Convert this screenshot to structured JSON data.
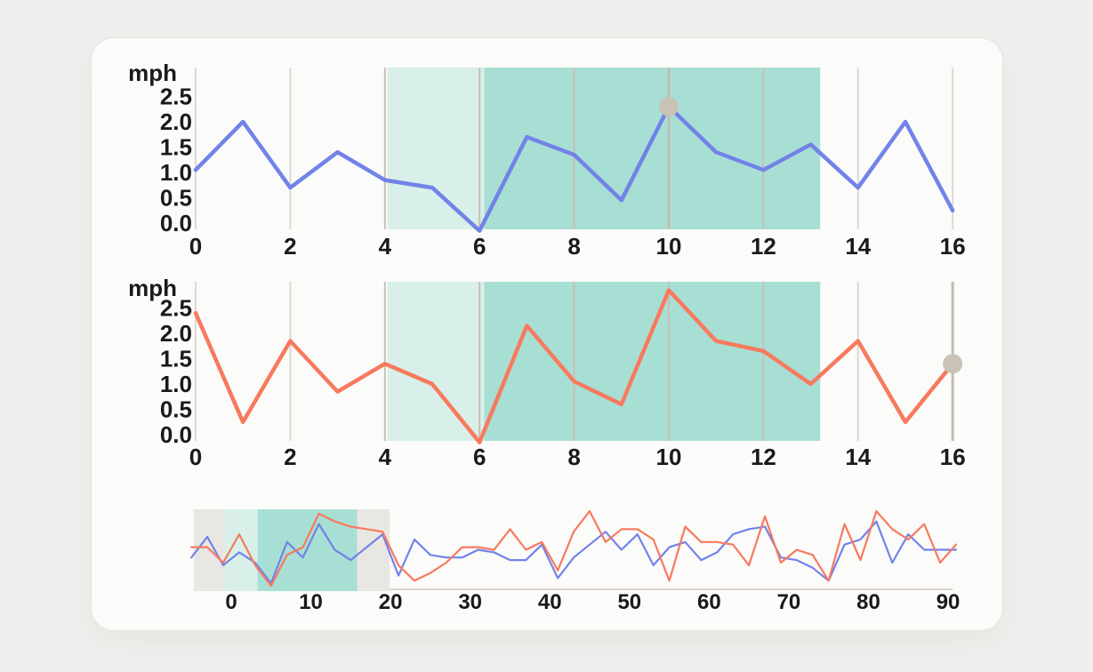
{
  "colors": {
    "blue": "#7283e8",
    "orange": "#f77a5e",
    "teal_light": "#d8f0e9",
    "teal_dark": "#a8dfd4",
    "grid": "#dcd9d2",
    "grid_highlight": "#c9bfb2",
    "cursor": "#c3bcae",
    "marker": "#cac3b5",
    "band_gray": "#e9e7e3",
    "axis_line": "#ddd5c7",
    "text": "#1a1a1c",
    "card_background": "#fbfbfa",
    "page_background": "#f0efed"
  },
  "chart_data": [
    {
      "type": "line",
      "id": "speed-detail-top",
      "ylabel": "mph",
      "x": [
        0,
        1,
        2,
        3,
        4,
        5,
        6,
        7,
        8,
        9,
        10,
        11,
        12,
        13,
        14,
        15,
        16
      ],
      "series": [
        {
          "name": "blue",
          "color": "#7283e8",
          "values": [
            1.05,
            2.0,
            0.7,
            1.4,
            0.85,
            0.7,
            -0.15,
            1.7,
            1.35,
            0.45,
            2.3,
            1.4,
            1.05,
            1.55,
            0.7,
            2.0,
            0.25
          ]
        }
      ],
      "xticks": [
        0,
        2,
        4,
        6,
        8,
        10,
        12,
        14,
        16
      ],
      "yticks": [
        2.5,
        2.0,
        1.5,
        1.0,
        0.5,
        0.0
      ],
      "xlim": [
        -0.4,
        16.4
      ],
      "ylim": [
        -0.2,
        3.1
      ],
      "grid": "vertical",
      "legend": "none",
      "regions": [
        {
          "from": 4.05,
          "to": 6.1,
          "color_key": "teal_light"
        },
        {
          "from": 6.1,
          "to": 13.2,
          "color_key": "teal_dark"
        }
      ],
      "marker": {
        "x": 10,
        "y": 2.3
      },
      "cursor_x": 10
    },
    {
      "type": "line",
      "id": "speed-detail-bottom",
      "ylabel": "mph",
      "x": [
        0,
        1,
        2,
        3,
        4,
        5,
        6,
        7,
        8,
        9,
        10,
        11,
        12,
        13,
        14,
        15,
        16
      ],
      "series": [
        {
          "name": "orange",
          "color": "#f77a5e",
          "values": [
            2.4,
            0.25,
            1.85,
            0.85,
            1.4,
            1.0,
            -0.15,
            2.15,
            1.05,
            0.6,
            2.85,
            1.85,
            1.65,
            1.0,
            1.85,
            0.25,
            1.4
          ]
        }
      ],
      "xticks": [
        0,
        2,
        4,
        6,
        8,
        10,
        12,
        14,
        16
      ],
      "yticks": [
        2.5,
        2.0,
        1.5,
        1.0,
        0.5,
        0.0
      ],
      "xlim": [
        -0.4,
        16.4
      ],
      "ylim": [
        -0.2,
        3.1
      ],
      "grid": "vertical",
      "legend": "none",
      "regions": [
        {
          "from": 4.05,
          "to": 6.1,
          "color_key": "teal_light"
        },
        {
          "from": 6.1,
          "to": 13.2,
          "color_key": "teal_dark"
        }
      ],
      "marker": {
        "x": 16,
        "y": 1.4
      },
      "cursor_x": 16
    },
    {
      "type": "line",
      "id": "overview-brush",
      "x_start": -5,
      "x_step": 2,
      "series": [
        {
          "name": "blue",
          "color": "#7283e8",
          "values": [
            1.2,
            2.0,
            0.9,
            1.4,
            1.0,
            0.2,
            1.8,
            1.2,
            2.5,
            1.5,
            1.1,
            1.6,
            2.1,
            0.5,
            1.9,
            1.3,
            1.2,
            1.2,
            1.5,
            1.4,
            1.1,
            1.1,
            1.7,
            0.4,
            1.2,
            1.7,
            2.2,
            1.5,
            2.1,
            0.9,
            1.6,
            1.8,
            1.1,
            1.4,
            2.1,
            2.3,
            2.4,
            1.2,
            1.1,
            0.8,
            0.3,
            1.7,
            1.9,
            2.6,
            1.0,
            2.1,
            1.5,
            1.5,
            1.5
          ]
        },
        {
          "name": "orange",
          "color": "#f77a5e",
          "values": [
            1.6,
            1.6,
            1.0,
            2.1,
            0.9,
            0.1,
            1.3,
            1.6,
            2.9,
            2.6,
            2.4,
            2.3,
            2.2,
            0.9,
            0.3,
            0.6,
            1.0,
            1.6,
            1.6,
            1.5,
            2.3,
            1.5,
            1.8,
            0.7,
            2.2,
            3.0,
            1.8,
            2.3,
            2.3,
            1.9,
            0.3,
            2.4,
            1.8,
            1.8,
            1.7,
            0.9,
            2.8,
            1.0,
            1.5,
            1.3,
            0.3,
            2.5,
            1.1,
            3.0,
            2.3,
            1.9,
            2.5,
            1.0,
            1.7
          ]
        }
      ],
      "xticks": [
        0,
        10,
        20,
        30,
        40,
        50,
        60,
        70,
        80,
        90
      ],
      "xlim": [
        -5,
        91.5
      ],
      "ylim": [
        -0.1,
        3.2
      ],
      "brush": {
        "from": -4.7,
        "to": 19.9,
        "color_key": "band_gray"
      },
      "regions": [
        {
          "from": -0.8,
          "to": 3.3,
          "color_key": "teal_light"
        },
        {
          "from": 3.3,
          "to": 15.8,
          "color_key": "teal_dark"
        }
      ]
    }
  ]
}
